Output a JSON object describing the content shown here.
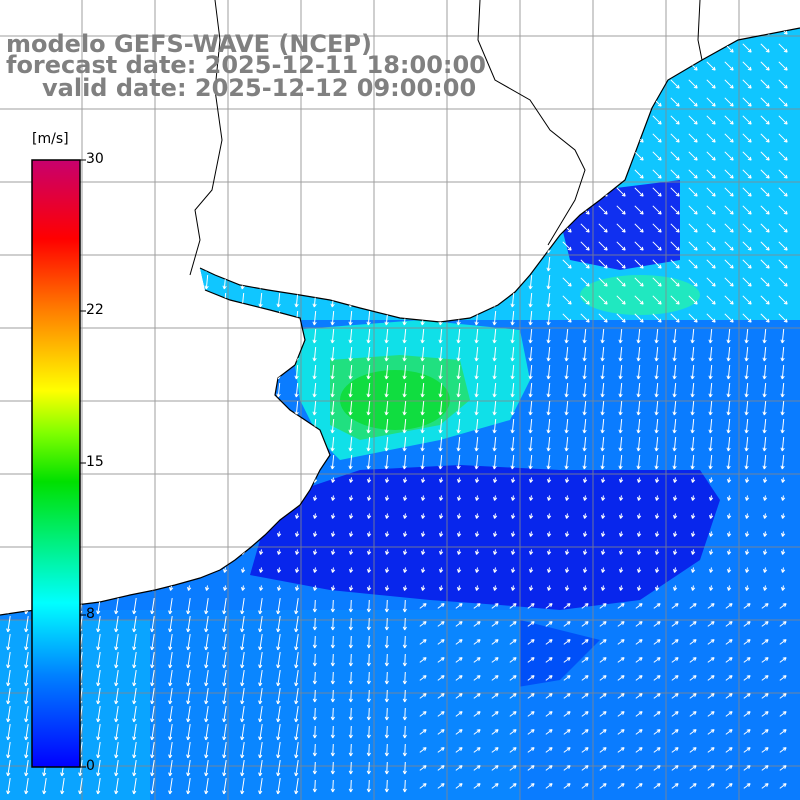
{
  "header": {
    "model_line": "modelo GEFS-WAVE (NCEP)",
    "forecast_line": "forecast date: 2025-12-11 18:00:00",
    "valid_line": "valid date: 2025-12-12 09:00:00"
  },
  "legend": {
    "unit": "[m/s]",
    "ticks": [
      "30",
      "22",
      "15",
      "8",
      "0"
    ],
    "tick_values": [
      30,
      22,
      15,
      8,
      0
    ],
    "min": 0,
    "max": 30
  },
  "colors": {
    "very_low": "#0010e6",
    "low": "#0060ff",
    "mid": "#00b4ff",
    "cyan": "#00f0f0",
    "green": "#00e060",
    "coastline": "#000000",
    "grid": "#888888",
    "arrows": "#ffffff"
  }
}
